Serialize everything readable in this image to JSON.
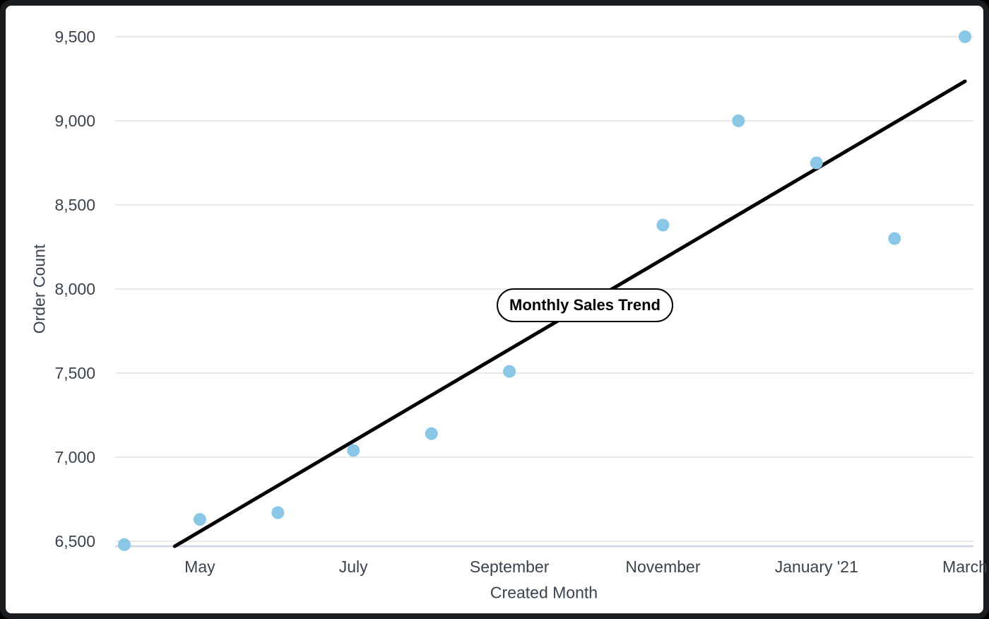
{
  "window": {
    "frame_color": "#1a1d20",
    "card_background": "#ffffff",
    "outer_background": "#000000"
  },
  "chart_data": {
    "type": "scatter",
    "annotation_label": "Monthly Sales Trend",
    "xlabel": "Created Month",
    "ylabel": "Order Count",
    "point_color": "#8AC7E6",
    "trend_color": "#000000",
    "grid_color": "#E8E8E8",
    "axis_line_color": "#CCD5E6",
    "text_color": "#3A434D",
    "grid": true,
    "legend": "none",
    "ylim": [
      6470,
      9500
    ],
    "y_ticks": [
      {
        "label": "6,500",
        "value": 6500
      },
      {
        "label": "7,000",
        "value": 7000
      },
      {
        "label": "7,500",
        "value": 7500
      },
      {
        "label": "8,000",
        "value": 8000
      },
      {
        "label": "8,500",
        "value": 8500
      },
      {
        "label": "9,000",
        "value": 9000
      },
      {
        "label": "9,500",
        "value": 9500
      }
    ],
    "x_ticks": [
      {
        "label": "May",
        "day": 30
      },
      {
        "label": "July",
        "day": 91
      },
      {
        "label": "September",
        "day": 153
      },
      {
        "label": "November",
        "day": 214
      },
      {
        "label": "January '21",
        "day": 275
      },
      {
        "label": "March",
        "day": 334
      }
    ],
    "points": [
      {
        "month": "April '20",
        "day": 0,
        "value": 6480
      },
      {
        "month": "May '20",
        "day": 30,
        "value": 6630
      },
      {
        "month": "June '20",
        "day": 61,
        "value": 6670
      },
      {
        "month": "July '20",
        "day": 91,
        "value": 7040
      },
      {
        "month": "August '20",
        "day": 122,
        "value": 7140
      },
      {
        "month": "September '20",
        "day": 153,
        "value": 7510
      },
      {
        "month": "November '20",
        "day": 214,
        "value": 8380
      },
      {
        "month": "December '20",
        "day": 244,
        "value": 9000
      },
      {
        "month": "January '21",
        "day": 275,
        "value": 8750
      },
      {
        "month": "February '21",
        "day": 306,
        "value": 8300
      },
      {
        "month": "March '21",
        "day": 334,
        "value": 9500
      }
    ],
    "trend": {
      "start": {
        "day": 20,
        "value": 6470
      },
      "end": {
        "day": 334,
        "value": 9235
      }
    },
    "annotation_anchor": {
      "day": 183,
      "value": 7903
    }
  }
}
